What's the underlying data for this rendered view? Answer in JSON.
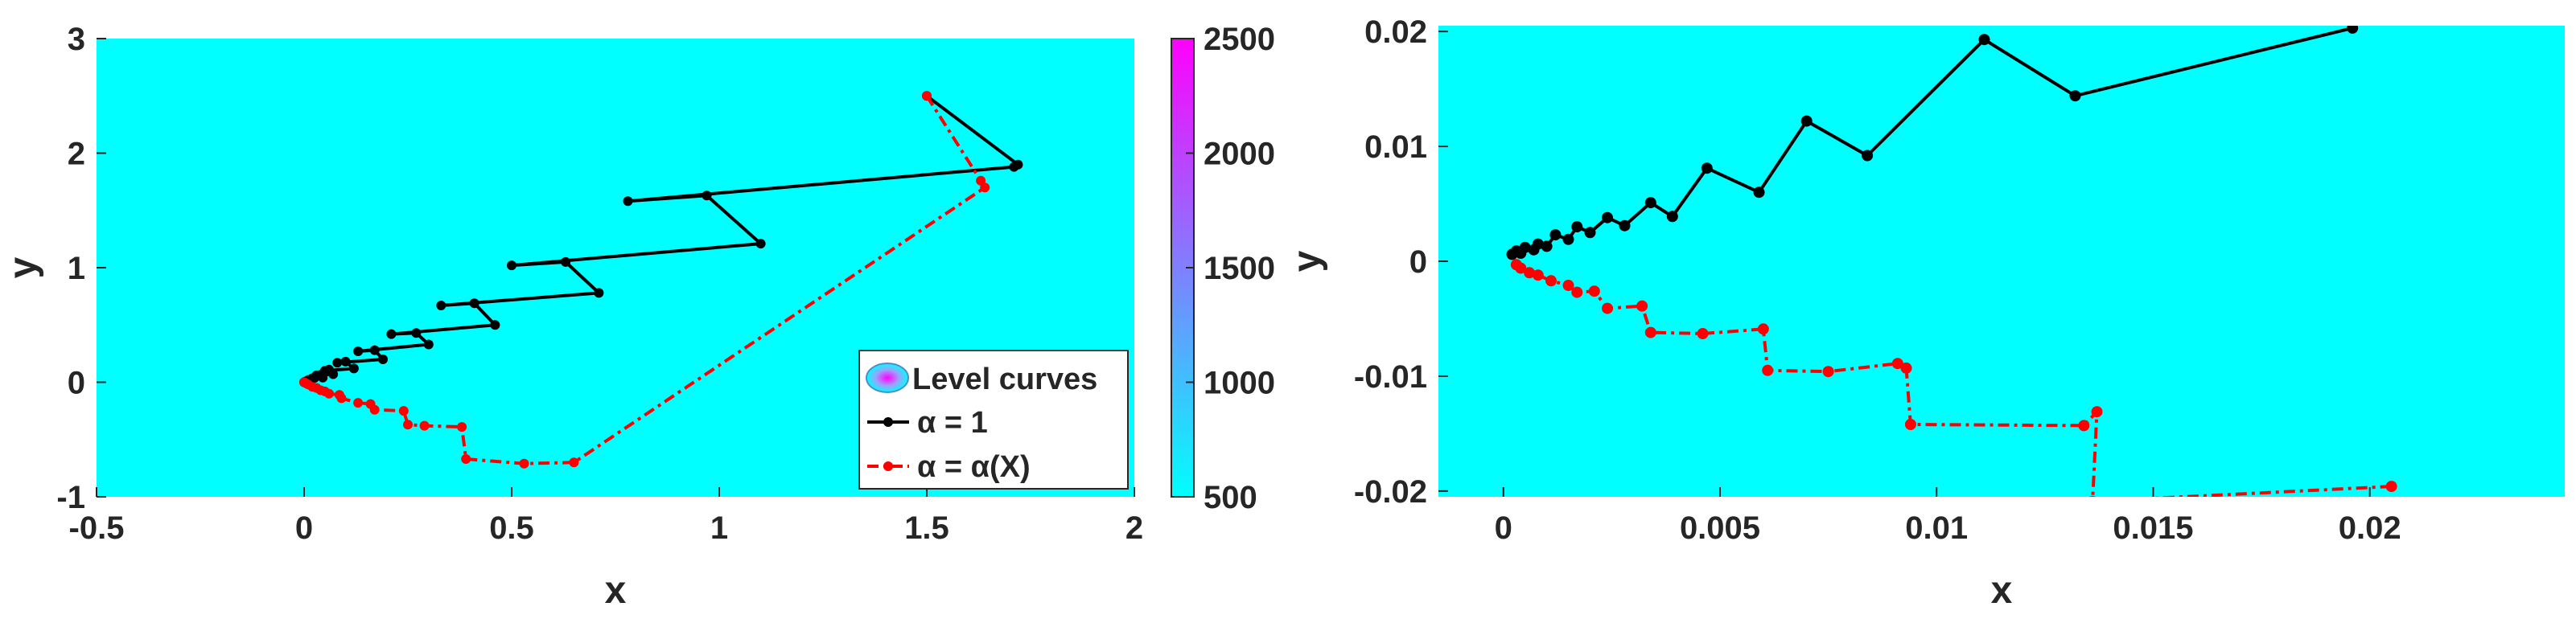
{
  "chart_data": [
    {
      "type": "line",
      "xlabel": "x",
      "ylabel": "y",
      "xlim": [
        -0.5,
        2
      ],
      "ylim": [
        -1,
        3
      ],
      "xticks": [
        "-0.5",
        "0",
        "0.5",
        "1",
        "1.5",
        "2"
      ],
      "yticks": [
        "-1",
        "0",
        "1",
        "2",
        "3"
      ],
      "background_color": "#00ffff",
      "legend_position": "bottom-right",
      "legend": [
        "Level curves",
        "α = 1",
        "α = α(X)"
      ],
      "colorbar": {
        "range": [
          500,
          2500
        ],
        "ticks": [
          "500",
          "1000",
          "1500",
          "2000",
          "2500"
        ],
        "colors": [
          "#00ffff",
          "#ff00ff"
        ]
      },
      "series": [
        {
          "name": "α = 1",
          "color": "#000000",
          "style": "solid",
          "x": [
            1.5,
            1.72,
            1.71,
            0.78,
            0.97,
            1.1,
            0.5,
            0.63,
            0.71,
            0.33,
            0.41,
            0.46,
            0.21,
            0.27,
            0.3,
            0.13,
            0.17,
            0.19,
            0.08,
            0.1,
            0.12,
            0.05,
            0.06,
            0.07,
            0.03,
            0.04,
            0.045,
            0.02,
            0.025,
            0.01,
            0.015,
            0.005,
            0.008,
            0.003,
            0.0
          ],
          "y": [
            2.5,
            1.9,
            1.88,
            1.58,
            1.63,
            1.21,
            1.02,
            1.05,
            0.78,
            0.67,
            0.69,
            0.5,
            0.42,
            0.43,
            0.33,
            0.27,
            0.28,
            0.2,
            0.17,
            0.18,
            0.12,
            0.1,
            0.11,
            0.07,
            0.06,
            0.065,
            0.04,
            0.035,
            0.038,
            0.02,
            0.022,
            0.01,
            0.012,
            0.005,
            0.0
          ]
        },
        {
          "name": "α = α(X)",
          "color": "#ff0000",
          "style": "dash-dot",
          "x": [
            1.5,
            1.63,
            1.64,
            0.65,
            0.53,
            0.39,
            0.38,
            0.29,
            0.25,
            0.24,
            0.17,
            0.16,
            0.13,
            0.09,
            0.085,
            0.06,
            0.05,
            0.04,
            0.03,
            0.02,
            0.01,
            0.005,
            0.0
          ],
          "y": [
            2.5,
            1.76,
            1.7,
            -0.7,
            -0.71,
            -0.67,
            -0.39,
            -0.38,
            -0.37,
            -0.25,
            -0.24,
            -0.19,
            -0.18,
            -0.14,
            -0.11,
            -0.1,
            -0.08,
            -0.07,
            -0.05,
            -0.04,
            -0.02,
            -0.01,
            0.0
          ]
        }
      ]
    },
    {
      "type": "line",
      "xlabel": "x",
      "ylabel": "y",
      "xlim": [
        -0.0015,
        0.0245
      ],
      "ylim": [
        -0.0205,
        0.0205
      ],
      "xticks": [
        "0",
        "0.005",
        "0.01",
        "0.015",
        "0.02"
      ],
      "yticks": [
        "-0.02",
        "-0.01",
        "0",
        "0.01",
        "0.02"
      ],
      "background_color": "#00ffff",
      "series": [
        {
          "name": "α = 1",
          "color": "#000000",
          "style": "solid",
          "x": [
            0.0196,
            0.0132,
            0.0111,
            0.0084,
            0.007,
            0.0059,
            0.0047,
            0.0039,
            0.0034,
            0.0028,
            0.0024,
            0.002,
            0.0017,
            0.0015,
            0.0012,
            0.001,
            0.0008,
            0.0007,
            0.0005,
            0.0004,
            0.0003,
            0.0002
          ],
          "y": [
            0.0203,
            0.0144,
            0.0193,
            0.0092,
            0.0122,
            0.006,
            0.0081,
            0.0039,
            0.0051,
            0.0031,
            0.0038,
            0.0025,
            0.003,
            0.0019,
            0.0023,
            0.0013,
            0.0015,
            0.001,
            0.0012,
            0.0007,
            0.0009,
            0.0006
          ]
        },
        {
          "name": "α = α(X)",
          "color": "#ff0000",
          "style": "dash-dot",
          "x": [
            0.0205,
            0.0136,
            0.0137,
            0.0134,
            0.0094,
            0.0093,
            0.0091,
            0.0075,
            0.0061,
            0.006,
            0.0046,
            0.0034,
            0.0032,
            0.0024,
            0.0021,
            0.0017,
            0.0015,
            0.0011,
            0.0008,
            0.0006,
            0.0004,
            0.0003
          ],
          "y": [
            -0.0196,
            -0.0209,
            -0.0131,
            -0.0143,
            -0.0142,
            -0.0093,
            -0.0089,
            -0.0096,
            -0.0095,
            -0.0059,
            -0.0063,
            -0.0062,
            -0.0039,
            -0.0041,
            -0.0026,
            -0.0027,
            -0.0021,
            -0.0017,
            -0.0012,
            -0.001,
            -0.0006,
            -0.0003
          ]
        }
      ]
    }
  ]
}
